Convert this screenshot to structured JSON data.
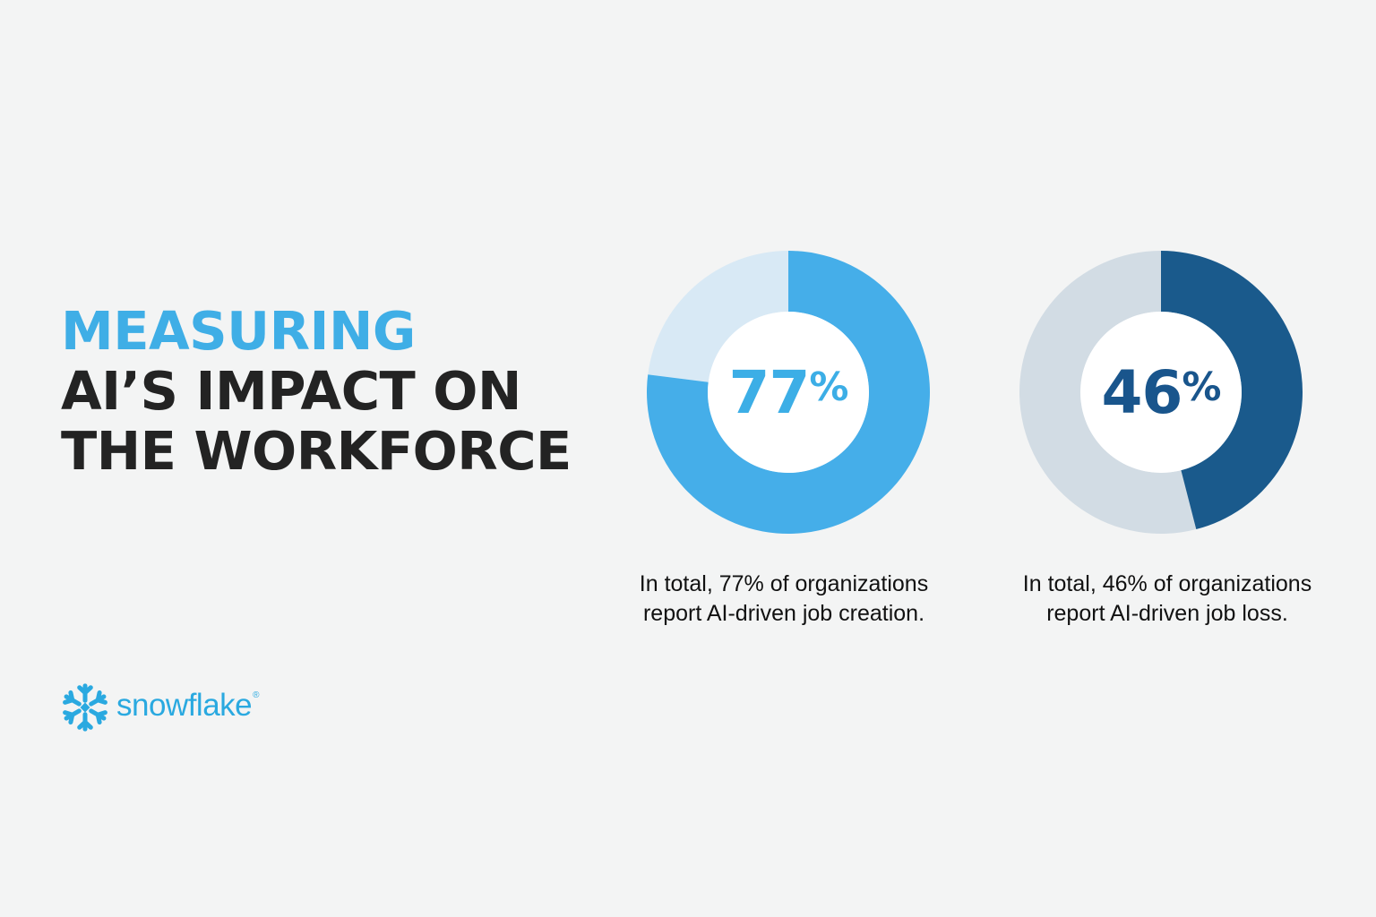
{
  "headline": {
    "line1": "MEASURING",
    "line2": "AI’S IMPACT ON",
    "line3": "THE WORKFORCE"
  },
  "chart_data": [
    {
      "type": "pie",
      "variant": "donut",
      "value": 77,
      "remainder": 23,
      "unit": "%",
      "center_label": "77",
      "center_symbol": "%",
      "caption_line1": "In total, 77% of organizations",
      "caption_line2": "report AI-driven job creation.",
      "colors": {
        "value": "#45aee9",
        "remainder": "#d8e9f5",
        "label": "#3caee6"
      }
    },
    {
      "type": "pie",
      "variant": "donut",
      "value": 46,
      "remainder": 54,
      "unit": "%",
      "center_label": "46",
      "center_symbol": "%",
      "caption_line1": "In total, 46% of organizations",
      "caption_line2": "report AI-driven job loss.",
      "colors": {
        "value": "#1a5a8c",
        "remainder": "#d2dce4",
        "label": "#19558c"
      }
    }
  ],
  "logo": {
    "wordmark": "snowflake",
    "registered": "®",
    "icon": "snowflake-icon",
    "color": "#2aa9e0"
  },
  "colors": {
    "background": "#f3f4f4",
    "accent": "#3faee6",
    "heading": "#232323",
    "text": "#111111"
  }
}
